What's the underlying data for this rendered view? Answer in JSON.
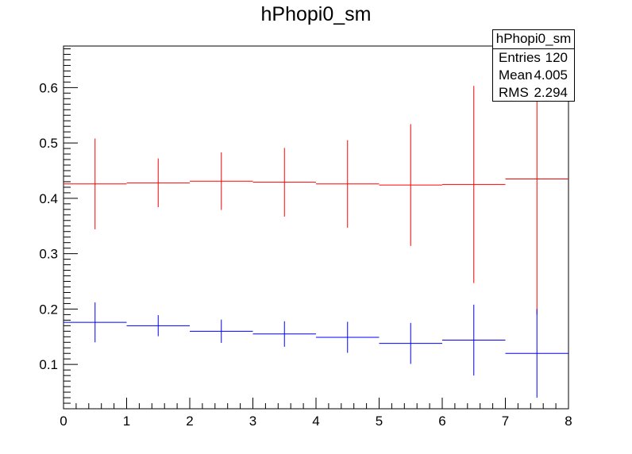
{
  "chart_data": {
    "type": "scatter",
    "title": "hPhopi0_sm",
    "xlabel": "",
    "ylabel": "",
    "xlim": [
      0,
      8
    ],
    "ylim": [
      0.02,
      0.675
    ],
    "x_ticks": [
      "0",
      "1",
      "2",
      "3",
      "4",
      "5",
      "6",
      "7",
      "8"
    ],
    "y_ticks": [
      "0.1",
      "0.2",
      "0.3",
      "0.4",
      "0.5",
      "0.6"
    ],
    "x_tick_values": [
      0,
      1,
      2,
      3,
      4,
      5,
      6,
      7,
      8
    ],
    "y_tick_values": [
      0.1,
      0.2,
      0.3,
      0.4,
      0.5,
      0.6
    ],
    "grid": false,
    "series": [
      {
        "color": "#ff0000",
        "points": [
          {
            "x": 0.5,
            "xerr": 0.5,
            "y": 0.426,
            "yerr": 0.082
          },
          {
            "x": 1.5,
            "xerr": 0.5,
            "y": 0.428,
            "yerr": 0.044
          },
          {
            "x": 2.5,
            "xerr": 0.5,
            "y": 0.431,
            "yerr": 0.052
          },
          {
            "x": 3.5,
            "xerr": 0.5,
            "y": 0.429,
            "yerr": 0.062
          },
          {
            "x": 4.5,
            "xerr": 0.5,
            "y": 0.426,
            "yerr": 0.079
          },
          {
            "x": 5.5,
            "xerr": 0.5,
            "y": 0.424,
            "yerr": 0.11
          },
          {
            "x": 6.5,
            "xerr": 0.5,
            "y": 0.425,
            "yerr": 0.178
          },
          {
            "x": 7.5,
            "xerr": 0.5,
            "y": 0.435,
            "yerr": 0.245
          }
        ]
      },
      {
        "color": "#0000ff",
        "points": [
          {
            "x": 0.5,
            "xerr": 0.5,
            "y": 0.176,
            "yerr": 0.036
          },
          {
            "x": 1.5,
            "xerr": 0.5,
            "y": 0.17,
            "yerr": 0.019
          },
          {
            "x": 2.5,
            "xerr": 0.5,
            "y": 0.16,
            "yerr": 0.021
          },
          {
            "x": 3.5,
            "xerr": 0.5,
            "y": 0.155,
            "yerr": 0.023
          },
          {
            "x": 4.5,
            "xerr": 0.5,
            "y": 0.149,
            "yerr": 0.028
          },
          {
            "x": 5.5,
            "xerr": 0.5,
            "y": 0.138,
            "yerr": 0.037
          },
          {
            "x": 6.5,
            "xerr": 0.5,
            "y": 0.144,
            "yerr": 0.064
          },
          {
            "x": 7.5,
            "xerr": 0.5,
            "y": 0.12,
            "yerr": 0.08
          }
        ]
      }
    ]
  },
  "stats": {
    "title": "hPhopi0_sm",
    "entries_label": "Entries",
    "entries_value": "120",
    "mean_label": "Mean",
    "mean_value": "4.005",
    "rms_label": "RMS",
    "rms_value": "2.294"
  }
}
